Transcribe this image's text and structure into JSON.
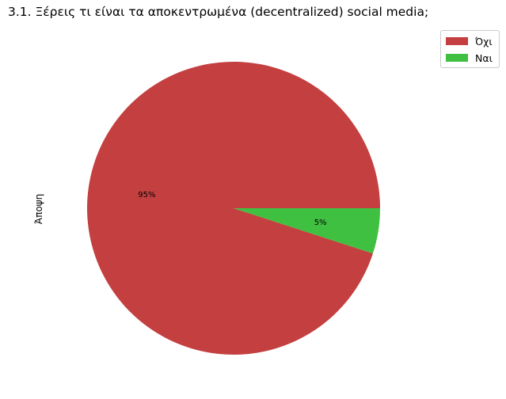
{
  "chart_data": {
    "type": "pie",
    "title": "3.1. Ξέρεις τι είναι τα αποκεντρωμένα (decentralized) social media;",
    "ylabel": "Άποψη",
    "slices": [
      {
        "label": "Όχι",
        "value": 95,
        "pct_label": "95%",
        "color": "#c44040"
      },
      {
        "label": "Ναι",
        "value": 5,
        "pct_label": "5%",
        "color": "#40c040"
      }
    ],
    "start_angle_deg": 0,
    "direction": "counterclockwise",
    "legend": {
      "placement": "top-right",
      "entries": [
        "Όχι",
        "Ναι"
      ]
    }
  }
}
